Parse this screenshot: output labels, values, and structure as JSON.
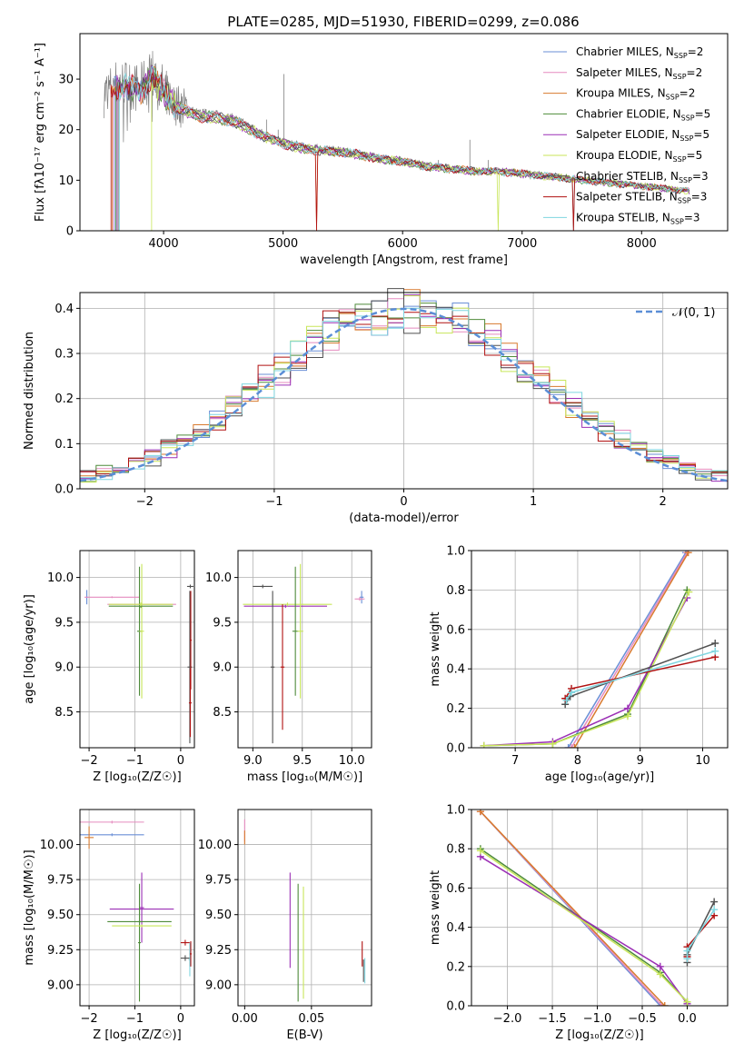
{
  "figure": {
    "title": "PLATE=0285, MJD=51930, FIBERID=0299, z=0.086",
    "colors": [
      "#6a8fd6",
      "#e58bbf",
      "#c88c36",
      "#4e8b3a",
      "#9b2fb5",
      "#e6e65a",
      "#505050",
      "#b01010",
      "#7fd6e0"
    ],
    "model_colors": [
      "#6a8fd6",
      "#e58bbf",
      "#d87a2e",
      "#4e8b3a",
      "#9b2fb5",
      "#c8e65a",
      "#505050",
      "#b01010",
      "#7fd6e0"
    ],
    "data_color": "#808080"
  },
  "chart_data": [
    {
      "id": "spectrum",
      "type": "line",
      "xlabel": "wavelength [Angstrom, rest frame]",
      "ylabel": "Flux [fλ10⁻¹⁷ erg cm⁻² s⁻¹ A⁻¹]",
      "xlim": [
        3300,
        8720
      ],
      "ylim": [
        0,
        39
      ],
      "xticks": [
        "4000",
        "5000",
        "6000",
        "7000",
        "8000"
      ],
      "yticks": [
        "0",
        "10",
        "20",
        "30"
      ],
      "grid": false,
      "legend_position": "upper right",
      "continuum": {
        "x": [
          3500,
          3600,
          3700,
          3800,
          3900,
          4000,
          4100,
          4200,
          4300,
          4400,
          4600,
          4800,
          5000,
          5200,
          5400,
          5600,
          5800,
          6000,
          6200,
          6400,
          6600,
          6800,
          7000,
          7200,
          7400,
          7600,
          7800,
          8000,
          8200,
          8400
        ],
        "y": [
          27,
          29,
          29,
          28,
          31,
          28,
          25,
          24,
          23,
          23,
          22,
          19.5,
          17.5,
          16.5,
          16,
          15.5,
          14.5,
          14,
          13,
          12.5,
          12,
          12,
          11.5,
          11,
          10.5,
          10,
          9.5,
          9,
          8.5,
          8
        ]
      },
      "series": [
        {
          "name": "Chabrier MILES, N_SSP=2",
          "label": "Chabrier MILES, N",
          "sub": "SSP",
          "value": "=2"
        },
        {
          "name": "Salpeter MILES, N_SSP=2",
          "label": "Salpeter MILES, N",
          "sub": "SSP",
          "value": "=2"
        },
        {
          "name": "Kroupa MILES, N_SSP=2",
          "label": "Kroupa MILES, N",
          "sub": "SSP",
          "value": "=2"
        },
        {
          "name": "Chabrier ELODIE, N_SSP=5",
          "label": "Chabrier ELODIE, N",
          "sub": "SSP",
          "value": "=5"
        },
        {
          "name": "Salpeter ELODIE, N_SSP=5",
          "label": "Salpeter ELODIE, N",
          "sub": "SSP",
          "value": "=5"
        },
        {
          "name": "Kroupa ELODIE, N_SSP=5",
          "label": "Kroupa ELODIE, N",
          "sub": "SSP",
          "value": "=5"
        },
        {
          "name": "Chabrier STELIB, N_SSP=3",
          "label": "Chabrier STELIB, N",
          "sub": "SSP",
          "value": "=3"
        },
        {
          "name": "Salpeter STELIB, N_SSP=3",
          "label": "Salpeter STELIB, N",
          "sub": "SSP",
          "value": "=3"
        },
        {
          "name": "Kroupa STELIB, N_SSP=3",
          "label": "Kroupa STELIB, N",
          "sub": "SSP",
          "value": "=3"
        }
      ]
    },
    {
      "id": "residuals",
      "type": "histogram",
      "xlabel": "(data-model)/error",
      "ylabel": "Normed distribution",
      "xlim": [
        -2.5,
        2.5
      ],
      "ylim": [
        0,
        0.435
      ],
      "xticks": [
        -2,
        -1,
        0,
        1,
        2
      ],
      "yticks": [
        0.0,
        0.1,
        0.2,
        0.3,
        0.4
      ],
      "xtick_labels": [
        "−2",
        "−1",
        "0",
        "1",
        "2"
      ],
      "ytick_labels": [
        "0.0",
        "0.1",
        "0.2",
        "0.3",
        "0.4"
      ],
      "grid": true,
      "legend": {
        "label": "𝒩(0, 1)",
        "position": "upper right"
      },
      "bins": 40
    },
    {
      "id": "age-vs-Z",
      "type": "errorbar",
      "xlabel": "Z [log₁₀(Z/Z☉)]",
      "ylabel": "age [log₁₀(age/yr)]",
      "xlim": [
        -2.2,
        0.3
      ],
      "ylim": [
        8.1,
        10.3
      ],
      "xticks": [
        -2,
        -1,
        0
      ],
      "xtick_labels": [
        "−2",
        "−1",
        "0"
      ],
      "yticks": [
        8.5,
        9.0,
        9.5,
        10.0
      ],
      "ytick_labels": [
        "8.5",
        "9.0",
        "9.5",
        "10.0"
      ],
      "grid": true,
      "points": [
        {
          "x": -0.85,
          "xe": 0.75,
          "y": 9.7,
          "ye": 0.02,
          "c": 1
        },
        {
          "x": -2.05,
          "xe": 0.02,
          "y": 9.78,
          "ye": 0.08,
          "c": 0
        },
        {
          "x": -1.5,
          "xe": 0.6,
          "y": 9.78,
          "ye": 0.01,
          "c": 1
        },
        {
          "x": -0.9,
          "xe": 0.05,
          "y": 9.4,
          "ye": 0.72,
          "c": 3
        },
        {
          "x": -0.85,
          "xe": 0.05,
          "y": 9.4,
          "ye": 0.75,
          "c": 5
        },
        {
          "x": -0.87,
          "xe": 0.7,
          "y": 9.68,
          "ye": 0.02,
          "c": 3
        },
        {
          "x": -0.87,
          "xe": 0.7,
          "y": 9.7,
          "ye": 0.02,
          "c": 5
        },
        {
          "x": 0.2,
          "xe": 0.05,
          "y": 9.0,
          "ye": 0.85,
          "c": 6
        },
        {
          "x": 0.22,
          "xe": 0.02,
          "y": 9.3,
          "ye": 0.55,
          "c": 7
        },
        {
          "x": 0.21,
          "xe": 0.07,
          "y": 9.9,
          "ye": 0.02,
          "c": 6
        },
        {
          "x": 0.21,
          "xe": 0.03,
          "y": 8.6,
          "ye": 0.38,
          "c": 7
        }
      ]
    },
    {
      "id": "age-vs-mass",
      "type": "errorbar",
      "xlabel": "mass [log₁₀(M/M☉)]",
      "ylabel": "",
      "xlim": [
        8.85,
        10.2
      ],
      "ylim": [
        8.1,
        10.3
      ],
      "xticks": [
        9.0,
        9.5,
        10.0
      ],
      "xtick_labels": [
        "9.0",
        "9.5",
        "10.0"
      ],
      "yticks": [
        8.5,
        9.0,
        9.5,
        10.0
      ],
      "ytick_labels": [
        "8.5",
        "9.0",
        "9.5",
        "10.0"
      ],
      "grid": true,
      "points": [
        {
          "x": 9.33,
          "xe": 0.42,
          "y": 9.68,
          "ye": 0.02,
          "c": 4
        },
        {
          "x": 9.35,
          "xe": 0.45,
          "y": 9.7,
          "ye": 0.02,
          "c": 5
        },
        {
          "x": 9.43,
          "xe": 0.03,
          "y": 9.4,
          "ye": 0.72,
          "c": 3
        },
        {
          "x": 9.48,
          "xe": 0.03,
          "y": 9.4,
          "ye": 0.75,
          "c": 5
        },
        {
          "x": 9.2,
          "xe": 0.02,
          "y": 9.0,
          "ye": 0.85,
          "c": 6
        },
        {
          "x": 9.3,
          "xe": 0.02,
          "y": 9.0,
          "ye": 0.7,
          "c": 7
        },
        {
          "x": 9.1,
          "xe": 0.1,
          "y": 9.9,
          "ye": 0.02,
          "c": 6
        },
        {
          "x": 10.1,
          "xe": 0.02,
          "y": 9.78,
          "ye": 0.07,
          "c": 0
        },
        {
          "x": 10.08,
          "xe": 0.05,
          "y": 9.76,
          "ye": 0.02,
          "c": 1
        }
      ]
    },
    {
      "id": "massweight-vs-age",
      "type": "line",
      "xlabel": "age [log₁₀(age/yr)]",
      "ylabel": "mass weight",
      "xlim": [
        6.3,
        10.4
      ],
      "ylim": [
        0,
        1.0
      ],
      "xticks": [
        7,
        8,
        9,
        10
      ],
      "xtick_labels": [
        "7",
        "8",
        "9",
        "10"
      ],
      "yticks": [
        0.0,
        0.2,
        0.4,
        0.6,
        0.8,
        1.0
      ],
      "ytick_labels": [
        "0.0",
        "0.2",
        "0.4",
        "0.6",
        "0.8",
        "1.0"
      ],
      "grid": true,
      "series": [
        {
          "c": 0,
          "x": [
            7.85,
            9.73
          ],
          "y": [
            0.0,
            0.99
          ]
        },
        {
          "c": 1,
          "x": [
            7.9,
            9.75
          ],
          "y": [
            0.0,
            0.99
          ]
        },
        {
          "c": 2,
          "x": [
            7.95,
            9.77
          ],
          "y": [
            0.0,
            0.99
          ]
        },
        {
          "c": 3,
          "x": [
            6.5,
            7.6,
            8.8,
            9.75
          ],
          "y": [
            0.01,
            0.02,
            0.17,
            0.8
          ]
        },
        {
          "c": 4,
          "x": [
            6.5,
            7.6,
            8.8,
            9.75
          ],
          "y": [
            0.01,
            0.03,
            0.2,
            0.76
          ]
        },
        {
          "c": 5,
          "x": [
            6.5,
            7.6,
            8.8,
            9.78
          ],
          "y": [
            0.01,
            0.02,
            0.16,
            0.79
          ]
        },
        {
          "c": 6,
          "x": [
            7.8,
            7.88,
            10.2
          ],
          "y": [
            0.22,
            0.26,
            0.53
          ]
        },
        {
          "c": 7,
          "x": [
            7.8,
            7.9,
            10.2
          ],
          "y": [
            0.25,
            0.3,
            0.46
          ]
        },
        {
          "c": 8,
          "x": [
            7.82,
            7.9,
            10.2
          ],
          "y": [
            0.24,
            0.28,
            0.49
          ]
        }
      ]
    },
    {
      "id": "mass-vs-Z",
      "type": "errorbar",
      "xlabel": "Z [log₁₀(Z/Z☉)]",
      "ylabel": "mass [log₁₀(M/M☉)]",
      "xlim": [
        -2.2,
        0.3
      ],
      "ylim": [
        8.85,
        10.25
      ],
      "xticks": [
        -2,
        -1,
        0
      ],
      "xtick_labels": [
        "−2",
        "−1",
        "0"
      ],
      "yticks": [
        9.0,
        9.25,
        9.5,
        9.75,
        10.0
      ],
      "ytick_labels": [
        "9.00",
        "9.25",
        "9.50",
        "9.75",
        "10.00"
      ],
      "grid": true,
      "points": [
        {
          "x": -1.5,
          "xe": 0.7,
          "y": 10.16,
          "ye": 0.01,
          "c": 1
        },
        {
          "x": -1.5,
          "xe": 0.7,
          "y": 10.07,
          "ye": 0.01,
          "c": 0
        },
        {
          "x": -2.0,
          "xe": 0.1,
          "y": 10.05,
          "ye": 0.08,
          "c": 2
        },
        {
          "x": -0.85,
          "xe": 0.7,
          "y": 9.54,
          "ye": 0.01,
          "c": 4
        },
        {
          "x": -0.85,
          "xe": 0.05,
          "y": 9.55,
          "ye": 0.25,
          "c": 4
        },
        {
          "x": -0.9,
          "xe": 0.7,
          "y": 9.45,
          "ye": 0.01,
          "c": 3
        },
        {
          "x": -0.9,
          "xe": 0.03,
          "y": 9.3,
          "ye": 0.42,
          "c": 3
        },
        {
          "x": -0.85,
          "xe": 0.65,
          "y": 9.42,
          "ye": 0.01,
          "c": 5
        },
        {
          "x": 0.1,
          "xe": 0.1,
          "y": 9.3,
          "ye": 0.02,
          "c": 7
        },
        {
          "x": 0.1,
          "xe": 0.1,
          "y": 9.19,
          "ye": 0.02,
          "c": 6
        },
        {
          "x": 0.2,
          "xe": 0.03,
          "y": 9.18,
          "ye": 0.12,
          "c": 8
        },
        {
          "x": 0.22,
          "xe": 0.02,
          "y": 9.22,
          "ye": 0.09,
          "c": 7
        }
      ]
    },
    {
      "id": "mass-vs-EBV",
      "type": "errorbar",
      "xlabel": "E(B-V)",
      "ylabel": "",
      "xlim": [
        -0.005,
        0.095
      ],
      "ylim": [
        8.85,
        10.25
      ],
      "xticks": [
        0.0,
        0.05
      ],
      "xtick_labels": [
        "0.00",
        "0.05"
      ],
      "yticks": [
        9.0,
        9.25,
        9.5,
        9.75,
        10.0
      ],
      "ytick_labels": [
        "9.00",
        "9.25",
        "9.50",
        "9.75",
        "10.00"
      ],
      "grid": true,
      "points": [
        {
          "x": 0.0,
          "xe": 0.0,
          "y": 10.1,
          "ye": 0.08,
          "c": 1
        },
        {
          "x": 0.0,
          "xe": 0.0,
          "y": 10.05,
          "ye": 0.05,
          "c": 2
        },
        {
          "x": 0.034,
          "xe": 0.0,
          "y": 9.46,
          "ye": 0.34,
          "c": 4
        },
        {
          "x": 0.04,
          "xe": 0.0,
          "y": 9.3,
          "ye": 0.42,
          "c": 3
        },
        {
          "x": 0.044,
          "xe": 0.0,
          "y": 9.3,
          "ye": 0.4,
          "c": 5
        },
        {
          "x": 0.088,
          "xe": 0.0,
          "y": 9.22,
          "ye": 0.09,
          "c": 7
        },
        {
          "x": 0.089,
          "xe": 0.0,
          "y": 9.1,
          "ye": 0.08,
          "c": 6
        },
        {
          "x": 0.09,
          "xe": 0.0,
          "y": 9.1,
          "ye": 0.09,
          "c": 8
        }
      ]
    },
    {
      "id": "massweight-vs-Z",
      "type": "line",
      "xlabel": "Z [log₁₀(Z/Z☉)]",
      "ylabel": "mass weight",
      "xlim": [
        -2.4,
        0.45
      ],
      "ylim": [
        0,
        1.0
      ],
      "xticks": [
        -2.0,
        -1.5,
        -1.0,
        -0.5,
        0.0
      ],
      "xtick_labels": [
        "−2.0",
        "−1.5",
        "−1.0",
        "−0.5",
        "0.0"
      ],
      "yticks": [
        0.0,
        0.2,
        0.4,
        0.6,
        0.8,
        1.0
      ],
      "ytick_labels": [
        "0.0",
        "0.2",
        "0.4",
        "0.6",
        "0.8",
        "1.0"
      ],
      "grid": true,
      "series": [
        {
          "c": 0,
          "x": [
            -2.3,
            -0.3
          ],
          "y": [
            0.99,
            0.0
          ]
        },
        {
          "c": 1,
          "x": [
            -2.3,
            -0.28
          ],
          "y": [
            0.99,
            0.0
          ]
        },
        {
          "c": 2,
          "x": [
            -2.3,
            -0.25
          ],
          "y": [
            0.99,
            0.0
          ]
        },
        {
          "c": 3,
          "x": [
            -2.3,
            -0.3,
            0.0
          ],
          "y": [
            0.8,
            0.17,
            0.02
          ]
        },
        {
          "c": 4,
          "x": [
            -2.3,
            -0.3,
            0.0
          ],
          "y": [
            0.76,
            0.2,
            0.01
          ]
        },
        {
          "c": 5,
          "x": [
            -2.3,
            -0.3,
            0.0
          ],
          "y": [
            0.79,
            0.16,
            0.02
          ]
        },
        {
          "c": 6,
          "x": [
            0.0,
            0.0,
            0.3
          ],
          "y": [
            0.22,
            0.26,
            0.53
          ]
        },
        {
          "c": 7,
          "x": [
            0.0,
            0.0,
            0.3
          ],
          "y": [
            0.25,
            0.3,
            0.46
          ]
        },
        {
          "c": 8,
          "x": [
            0.0,
            0.0,
            0.3
          ],
          "y": [
            0.24,
            0.28,
            0.49
          ]
        }
      ]
    }
  ]
}
